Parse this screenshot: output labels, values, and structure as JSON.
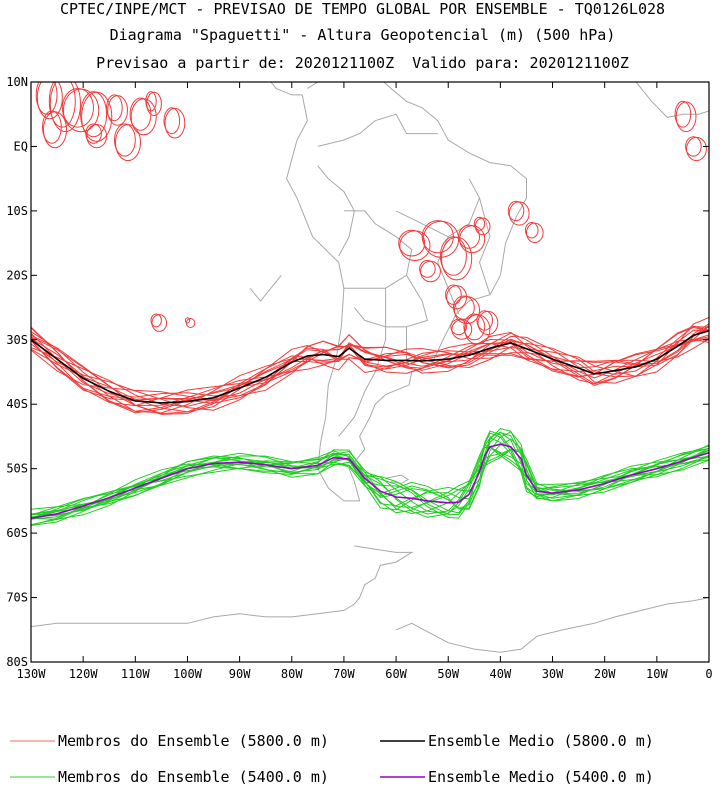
{
  "chart_data": {
    "type": "line",
    "title_lines": [
      "CPTEC/INPE/MCT - PREVISAO DE TEMPO GLOBAL POR ENSEMBLE - TQ0126L028",
      "Diagrama \"Spaguetti\" - Altura Geopotencial (m) (500 hPa)",
      "Previsao a partir de: 2020121100Z  Valido para: 2020121100Z"
    ],
    "xlim": [
      -130,
      0
    ],
    "ylim": [
      -80,
      10
    ],
    "x_ticks": [
      {
        "value": -130,
        "label": "130W"
      },
      {
        "value": -120,
        "label": "120W"
      },
      {
        "value": -110,
        "label": "110W"
      },
      {
        "value": -100,
        "label": "100W"
      },
      {
        "value": -90,
        "label": "90W"
      },
      {
        "value": -80,
        "label": "80W"
      },
      {
        "value": -70,
        "label": "70W"
      },
      {
        "value": -60,
        "label": "60W"
      },
      {
        "value": -50,
        "label": "50W"
      },
      {
        "value": -40,
        "label": "40W"
      },
      {
        "value": -30,
        "label": "30W"
      },
      {
        "value": -20,
        "label": "20W"
      },
      {
        "value": -10,
        "label": "10W"
      },
      {
        "value": 0,
        "label": "0"
      }
    ],
    "y_ticks": [
      {
        "value": 10,
        "label": "10N"
      },
      {
        "value": 0,
        "label": "EQ"
      },
      {
        "value": -10,
        "label": "10S"
      },
      {
        "value": -20,
        "label": "20S"
      },
      {
        "value": -30,
        "label": "30S"
      },
      {
        "value": -40,
        "label": "40S"
      },
      {
        "value": -50,
        "label": "50S"
      },
      {
        "value": -60,
        "label": "60S"
      },
      {
        "value": -70,
        "label": "70S"
      },
      {
        "value": -80,
        "label": "80S"
      }
    ],
    "series": [
      {
        "name": "Ensemble Medio (5800.0 m)",
        "color": "#000000",
        "x": [
          -130,
          -125,
          -120,
          -115,
          -110,
          -105,
          -100,
          -95,
          -90,
          -85,
          -80,
          -77,
          -74,
          -71,
          -69,
          -66,
          -62,
          -58,
          -55,
          -50,
          -46,
          -42,
          -38,
          -35,
          -30,
          -25,
          -22,
          -18,
          -14,
          -10,
          -6,
          -3,
          0
        ],
        "y": [
          -30,
          -33,
          -36,
          -38,
          -39.5,
          -39.8,
          -39.6,
          -39.0,
          -37.5,
          -35.8,
          -33.5,
          -32.5,
          -32.3,
          -32.6,
          -31.3,
          -33.0,
          -33.2,
          -33.2,
          -33.3,
          -33.0,
          -32.4,
          -31.3,
          -30.5,
          -31.4,
          -33.0,
          -34.4,
          -35.3,
          -34.8,
          -34.2,
          -33.0,
          -31.0,
          -29.3,
          -28.6
        ]
      },
      {
        "name": "Ensemble Medio (5400.0 m)",
        "color": "#9900cc",
        "x": [
          -130,
          -125,
          -120,
          -115,
          -110,
          -105,
          -100,
          -95,
          -90,
          -85,
          -80,
          -75,
          -72,
          -69,
          -66,
          -63,
          -60,
          -57,
          -54,
          -50,
          -48,
          -46,
          -44,
          -43,
          -42,
          -40,
          -38,
          -36,
          -35,
          -33,
          -30,
          -25,
          -20,
          -15,
          -10,
          -5,
          0
        ],
        "y": [
          -57.7,
          -57.0,
          -55.8,
          -54.5,
          -53.0,
          -51.5,
          -50.0,
          -49.2,
          -49.0,
          -49.4,
          -50.0,
          -49.5,
          -48.3,
          -48.5,
          -51.5,
          -53.5,
          -54.4,
          -54.6,
          -55.0,
          -55.3,
          -55.2,
          -54.0,
          -50.5,
          -48.0,
          -46.6,
          -46.2,
          -46.6,
          -48.5,
          -51.0,
          -53.5,
          -53.8,
          -53.3,
          -52.3,
          -51.0,
          -50.0,
          -48.8,
          -47.5
        ]
      }
    ],
    "legend": [
      {
        "label": "Membros do Ensemble (5800.0 m)",
        "color": "#f26b6b"
      },
      {
        "label": "Ensemble Medio (5800.0 m)",
        "color": "#000000"
      },
      {
        "label": "Membros do Ensemble (5400.0 m)",
        "color": "#33cc33"
      },
      {
        "label": "Ensemble Medio (5400.0 m)",
        "color": "#9900cc"
      }
    ],
    "ensemble_members_count": 14,
    "colors": {
      "member_5800": "#f03c3c",
      "member_5400": "#22cc22",
      "coastline": "#a8a8a8"
    }
  }
}
